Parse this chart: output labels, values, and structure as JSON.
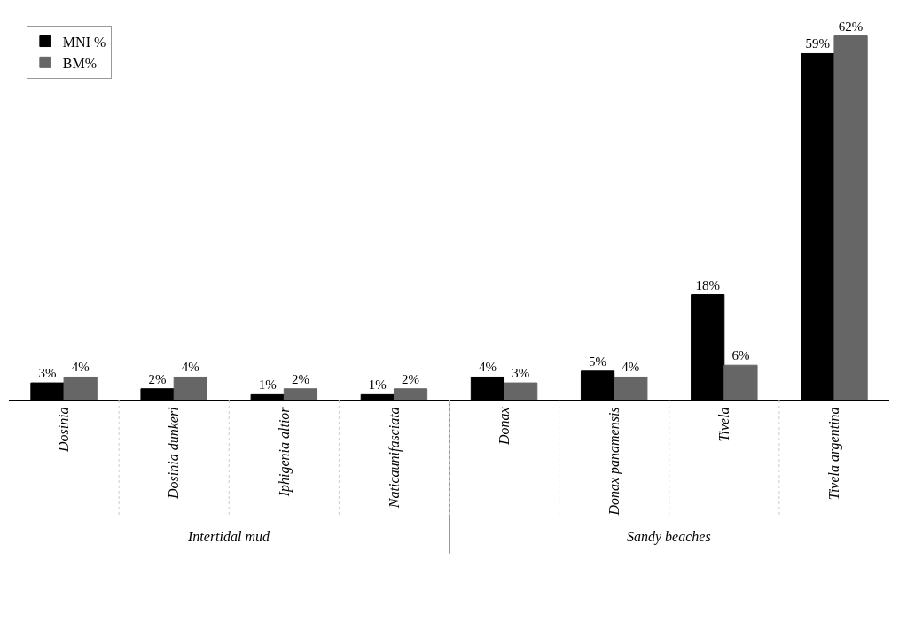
{
  "chart_data": {
    "type": "bar",
    "categories": [
      "Dosinia",
      "Dosinia dunkeri",
      "Iphigenia altior",
      "Naticaunifasciata",
      "Donax",
      "Donax panamensis",
      "Tivela",
      "Tivela argentina"
    ],
    "series": [
      {
        "name": "MNI %",
        "color": "#000000",
        "values": [
          3,
          2,
          1,
          1,
          4,
          5,
          18,
          59
        ],
        "value_labels": [
          "3%",
          "2%",
          "1%",
          "1%",
          "4%",
          "5%",
          "18%",
          "59%"
        ]
      },
      {
        "name": "BM%",
        "color": "#666666",
        "values": [
          4,
          4,
          2,
          2,
          3,
          4,
          6,
          62
        ],
        "value_labels": [
          "4%",
          "4%",
          "2%",
          "2%",
          "3%",
          "4%",
          "6%",
          "62%"
        ]
      }
    ],
    "legend": "top left",
    "annotations": [
      "Intertidal mud",
      "Sandy beaches"
    ]
  }
}
